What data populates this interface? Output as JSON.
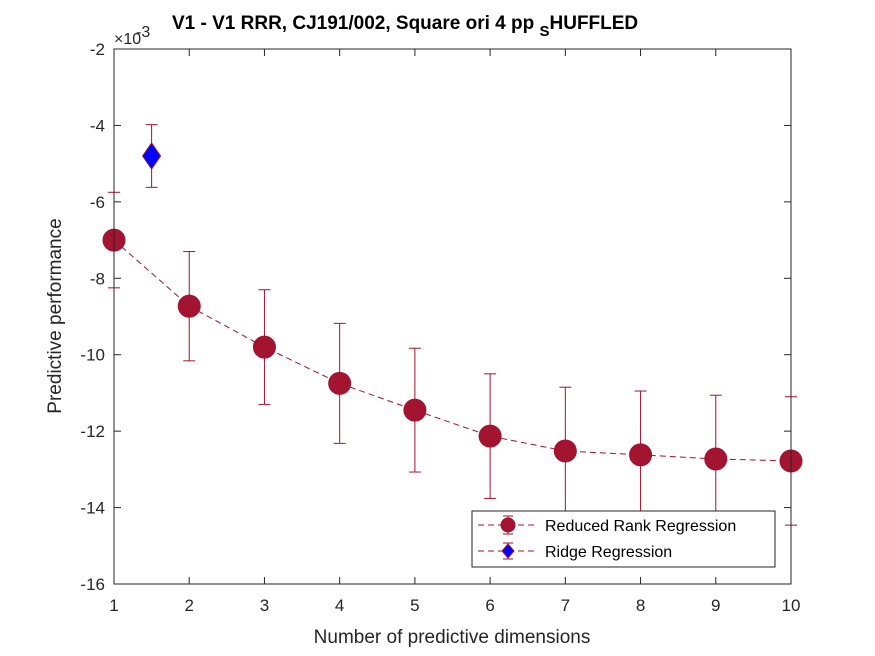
{
  "chart_data": {
    "type": "line",
    "title": {
      "main": "V1 - V1 RRR, CJ191/002, Square ori 4 pp ",
      "subscript": "S",
      "tail": "HUFFLED"
    },
    "xlabel": "Number of predictive dimensions",
    "ylabel": "Predictive performance",
    "y_exponent_label": "×10",
    "y_exponent_power": "-3",
    "xlim": [
      1,
      10
    ],
    "ylim": [
      -16,
      -2
    ],
    "x_ticks": [
      1,
      2,
      3,
      4,
      5,
      6,
      7,
      8,
      9,
      10
    ],
    "x_tick_labels": [
      "1",
      "2",
      "3",
      "4",
      "5",
      "6",
      "7",
      "8",
      "9",
      "10"
    ],
    "y_ticks": [
      -16,
      -14,
      -12,
      -10,
      -8,
      -6,
      -4,
      -2
    ],
    "y_tick_labels": [
      "-16",
      "-14",
      "-12",
      "-10",
      "-8",
      "-6",
      "-4",
      "-2"
    ],
    "grid": false,
    "legend_position": "bottom-right",
    "series": [
      {
        "name": "Reduced Rank Regression",
        "color": "#A2142F",
        "marker": "circle",
        "line_style": "dashed",
        "x": [
          1,
          2,
          3,
          4,
          5,
          6,
          7,
          8,
          9,
          10
        ],
        "values": [
          -7.0,
          -8.73,
          -9.8,
          -10.75,
          -11.45,
          -12.13,
          -12.52,
          -12.62,
          -12.73,
          -12.78
        ],
        "error": [
          1.25,
          1.43,
          1.5,
          1.57,
          1.62,
          1.63,
          1.67,
          1.67,
          1.67,
          1.68
        ]
      },
      {
        "name": "Ridge Regression",
        "color": "#0000FF",
        "edge_color": "#A2142F",
        "marker": "diamond",
        "line_style": "dashed",
        "x": [
          1.5
        ],
        "values": [
          -4.8
        ],
        "error": [
          0.82
        ]
      }
    ]
  }
}
